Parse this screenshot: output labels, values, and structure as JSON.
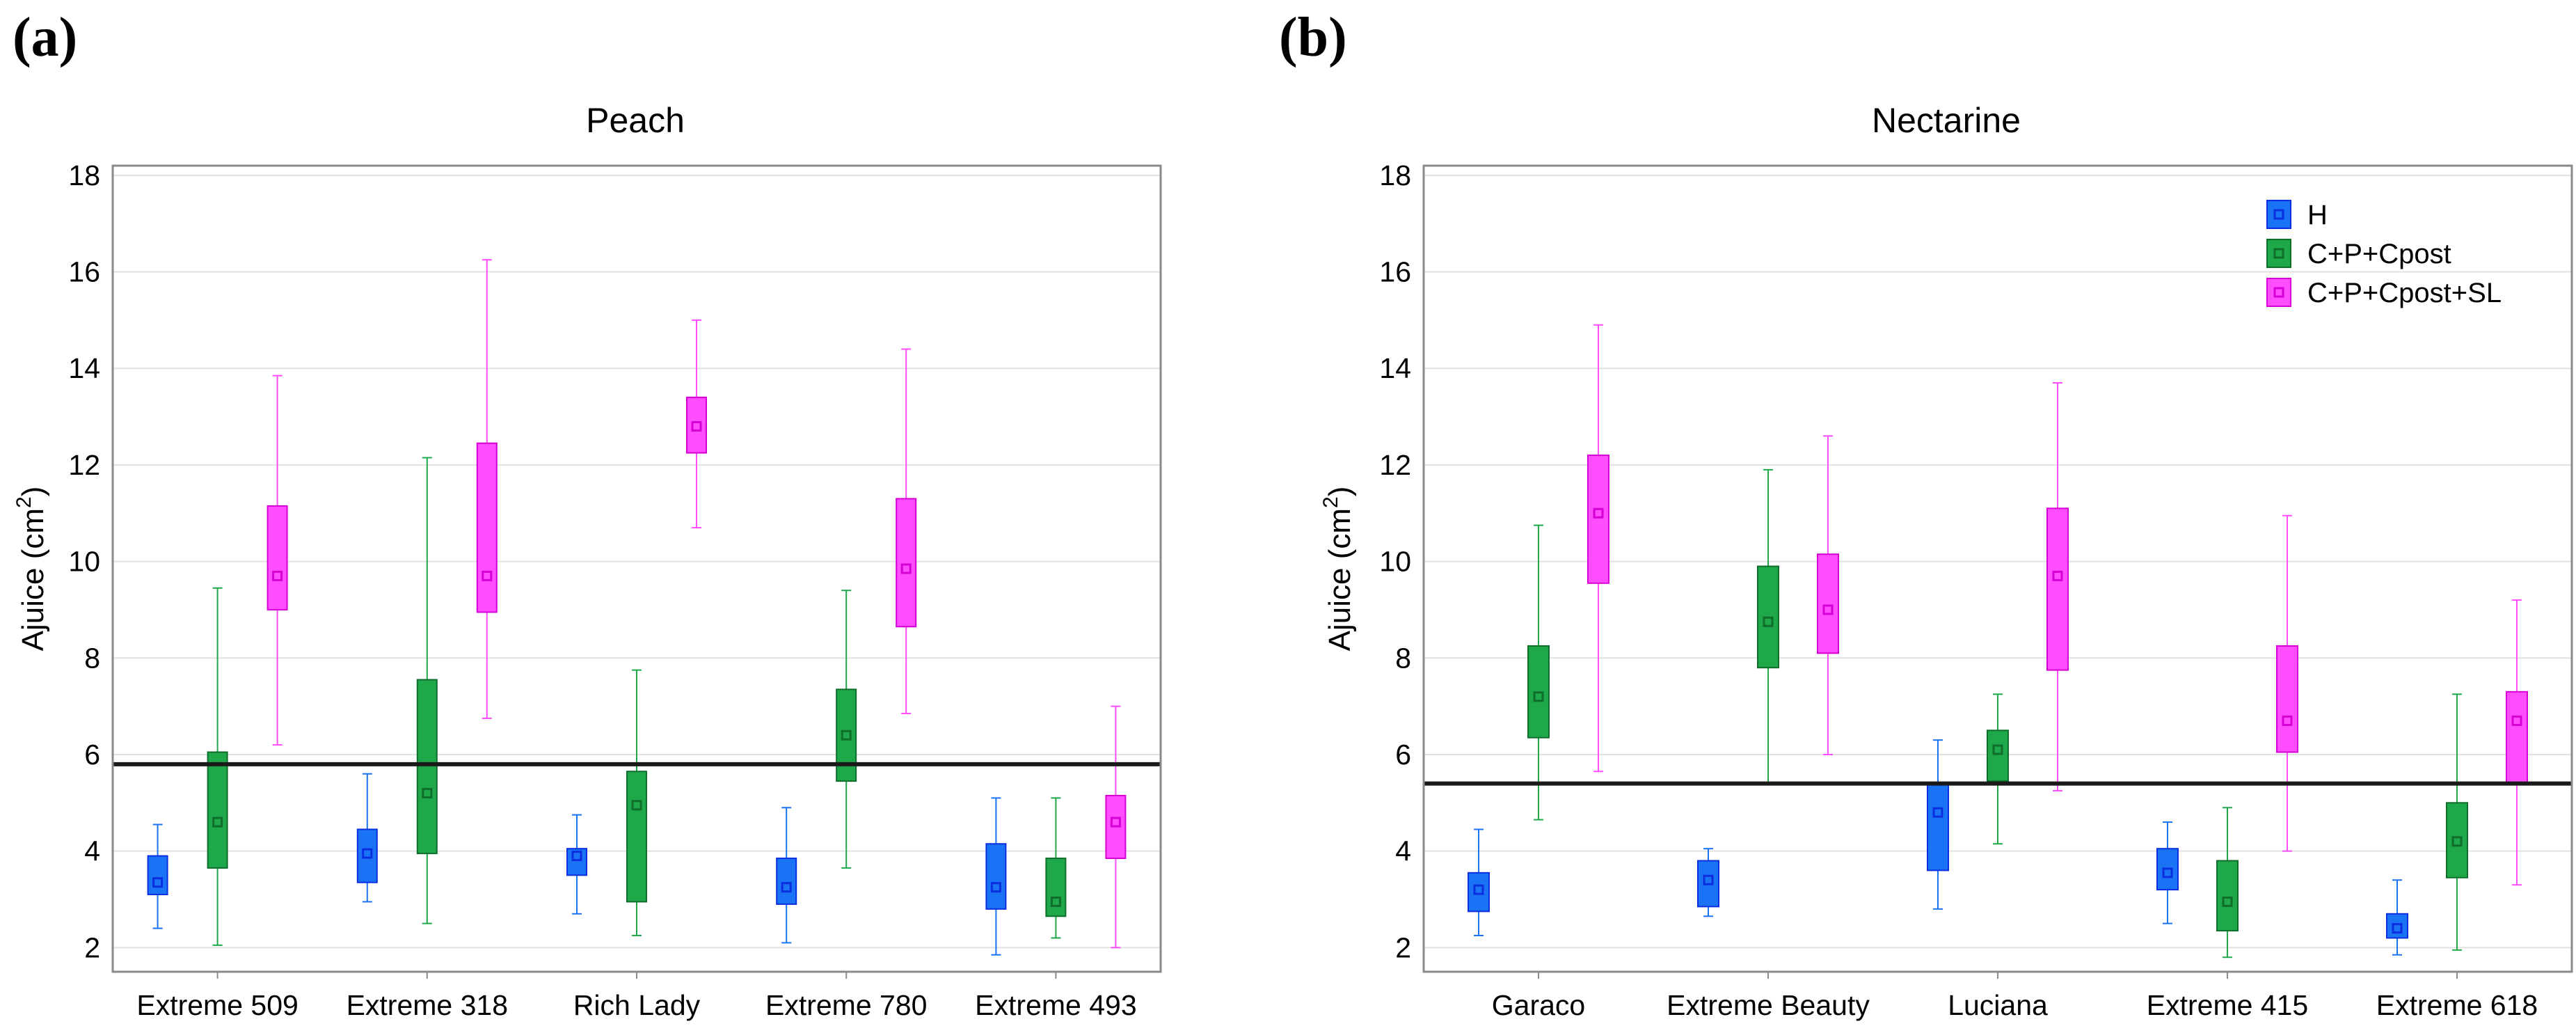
{
  "panel_labels": [
    "(a)",
    "(b)"
  ],
  "legend": [
    {
      "name": "H",
      "color": "#1a73f5",
      "dark": "#0b2fe0"
    },
    {
      "name": "C+P+Cpost",
      "color": "#1fa84a",
      "dark": "#0f6e2a"
    },
    {
      "name": "C+P+Cpost+SL",
      "color": "#ff4dff",
      "dark": "#d400d4"
    }
  ],
  "chart_data": [
    {
      "type": "box",
      "title": "Peach",
      "ylabel": "Ajuice (cm2)",
      "ylabel_main": "Ajuice (cm",
      "ylabel_sup": "2",
      "ylabel_end": ")",
      "ylim": [
        1.5,
        18.2
      ],
      "yticks": [
        2,
        4,
        6,
        8,
        10,
        12,
        14,
        16,
        18
      ],
      "threshold": 5.8,
      "categories": [
        "Extreme 509",
        "Extreme 318",
        "Rich Lady",
        "Extreme 780",
        "Extreme 493"
      ],
      "series": [
        {
          "name": "H",
          "boxes": [
            {
              "min": 2.4,
              "q1": 3.1,
              "median": 3.35,
              "q3": 3.9,
              "max": 4.55
            },
            {
              "min": 2.95,
              "q1": 3.35,
              "median": 3.95,
              "q3": 4.45,
              "max": 5.6
            },
            {
              "min": 2.7,
              "q1": 3.5,
              "median": 3.9,
              "q3": 4.05,
              "max": 4.75
            },
            {
              "min": 2.1,
              "q1": 2.9,
              "median": 3.25,
              "q3": 3.85,
              "max": 4.9
            },
            {
              "min": 1.85,
              "q1": 2.8,
              "median": 3.25,
              "q3": 4.15,
              "max": 5.1
            }
          ]
        },
        {
          "name": "C+P+Cpost",
          "boxes": [
            {
              "min": 2.05,
              "q1": 3.65,
              "median": 4.6,
              "q3": 6.05,
              "max": 9.45
            },
            {
              "min": 2.5,
              "q1": 3.95,
              "median": 5.2,
              "q3": 7.55,
              "max": 12.15
            },
            {
              "min": 2.25,
              "q1": 2.95,
              "median": 4.95,
              "q3": 5.65,
              "max": 7.75
            },
            {
              "min": 3.65,
              "q1": 5.45,
              "median": 6.4,
              "q3": 7.35,
              "max": 9.4
            },
            {
              "min": 2.2,
              "q1": 2.65,
              "median": 2.95,
              "q3": 3.85,
              "max": 5.1
            }
          ]
        },
        {
          "name": "C+P+Cpost+SL",
          "boxes": [
            {
              "min": 6.2,
              "q1": 9.0,
              "median": 9.7,
              "q3": 11.15,
              "max": 13.85
            },
            {
              "min": 6.75,
              "q1": 8.95,
              "median": 9.7,
              "q3": 12.45,
              "max": 16.25
            },
            {
              "min": 10.7,
              "q1": 12.25,
              "median": 12.8,
              "q3": 13.4,
              "max": 15.0
            },
            {
              "min": 6.85,
              "q1": 8.65,
              "median": 9.85,
              "q3": 11.3,
              "max": 14.4
            },
            {
              "min": 2.0,
              "q1": 3.85,
              "median": 4.6,
              "q3": 5.15,
              "max": 7.0
            }
          ]
        }
      ]
    },
    {
      "type": "box",
      "title": "Nectarine",
      "ylabel": "Ajuice (cm2)",
      "ylabel_main": "Ajuice (cm",
      "ylabel_sup": "2",
      "ylabel_end": ")",
      "ylim": [
        1.5,
        18.2
      ],
      "yticks": [
        2,
        4,
        6,
        8,
        10,
        12,
        14,
        16,
        18
      ],
      "threshold": 5.4,
      "legend_position": "top-right",
      "categories": [
        "Garaco",
        "Extreme Beauty",
        "Luciana",
        "Extreme 415",
        "Extreme 618"
      ],
      "series": [
        {
          "name": "H",
          "boxes": [
            {
              "min": 2.25,
              "q1": 2.75,
              "median": 3.2,
              "q3": 3.55,
              "max": 4.45
            },
            {
              "min": 2.65,
              "q1": 2.85,
              "median": 3.4,
              "q3": 3.8,
              "max": 4.05
            },
            {
              "min": 2.8,
              "q1": 3.6,
              "median": 4.8,
              "q3": 5.4,
              "max": 6.3
            },
            {
              "min": 2.5,
              "q1": 3.2,
              "median": 3.55,
              "q3": 4.05,
              "max": 4.6
            },
            {
              "min": 1.85,
              "q1": 2.2,
              "median": 2.4,
              "q3": 2.7,
              "max": 3.4
            }
          ]
        },
        {
          "name": "C+P+Cpost",
          "boxes": [
            {
              "min": 4.65,
              "q1": 6.35,
              "median": 7.2,
              "q3": 8.25,
              "max": 10.75
            },
            {
              "min": 5.4,
              "q1": 7.8,
              "median": 8.75,
              "q3": 9.9,
              "max": 11.9
            },
            {
              "min": 4.15,
              "q1": 5.45,
              "median": 6.1,
              "q3": 6.5,
              "max": 7.25
            },
            {
              "min": 1.8,
              "q1": 2.35,
              "median": 2.95,
              "q3": 3.8,
              "max": 4.9
            },
            {
              "min": 1.95,
              "q1": 3.45,
              "median": 4.2,
              "q3": 5.0,
              "max": 7.25
            }
          ]
        },
        {
          "name": "C+P+Cpost+SL",
          "boxes": [
            {
              "min": 5.65,
              "q1": 9.55,
              "median": 11.0,
              "q3": 12.2,
              "max": 14.9
            },
            {
              "min": 6.0,
              "q1": 8.1,
              "median": 9.0,
              "q3": 10.15,
              "max": 12.6
            },
            {
              "min": 5.25,
              "q1": 7.75,
              "median": 9.7,
              "q3": 11.1,
              "max": 13.7
            },
            {
              "min": 4.0,
              "q1": 6.05,
              "median": 6.7,
              "q3": 8.25,
              "max": 10.95
            },
            {
              "min": 3.3,
              "q1": 5.4,
              "median": 6.7,
              "q3": 7.3,
              "max": 9.2
            }
          ]
        }
      ]
    }
  ]
}
